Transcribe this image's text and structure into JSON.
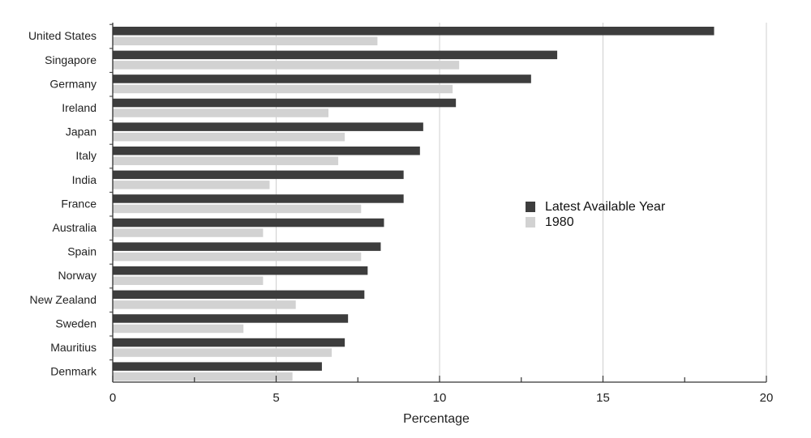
{
  "chart_data": {
    "type": "bar",
    "orientation": "horizontal",
    "title": "",
    "xlabel": "Percentage",
    "ylabel": "",
    "xlim": [
      0,
      20
    ],
    "xticks": [
      0,
      5,
      10,
      15,
      20
    ],
    "grid": "vertical",
    "legend_position": "right",
    "categories": [
      "United States",
      "Singapore",
      "Germany",
      "Ireland",
      "Japan",
      "Italy",
      "India",
      "France",
      "Australia",
      "Spain",
      "Norway",
      "New Zealand",
      "Sweden",
      "Mauritius",
      "Denmark"
    ],
    "series": [
      {
        "name": "Latest Available Year",
        "color": "#3d3d3d",
        "values": [
          18.4,
          13.6,
          12.8,
          10.5,
          9.5,
          9.4,
          8.9,
          8.9,
          8.3,
          8.2,
          7.8,
          7.7,
          7.2,
          7.1,
          6.4
        ]
      },
      {
        "name": "1980",
        "color": "#d2d2d2",
        "values": [
          8.1,
          10.6,
          10.4,
          6.6,
          7.1,
          6.9,
          4.8,
          7.6,
          4.6,
          7.6,
          4.6,
          5.6,
          4.0,
          6.7,
          5.5
        ]
      }
    ]
  }
}
